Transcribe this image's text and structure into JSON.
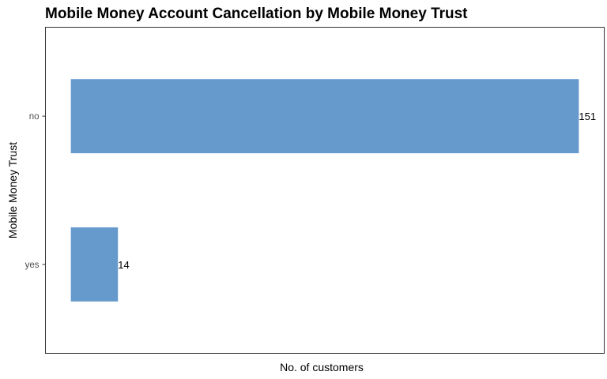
{
  "chart_data": {
    "type": "bar",
    "orientation": "horizontal",
    "title": "Mobile Money Account Cancellation by Mobile Money Trust",
    "xlabel": "No. of customers",
    "ylabel": "Mobile Money Trust",
    "categories": [
      "no",
      "yes"
    ],
    "values": [
      151,
      14
    ],
    "data_labels": [
      "151",
      "14"
    ],
    "bar_color": "#6699cc",
    "grid": false,
    "legend": "none"
  }
}
